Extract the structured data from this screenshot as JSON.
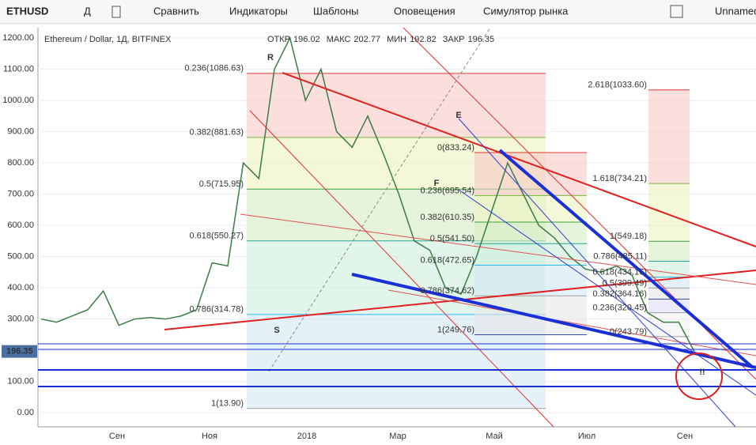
{
  "toolbar": {
    "symbol": "ETHUSD",
    "interval": "Д",
    "items": [
      "Сравнить",
      "Индикаторы",
      "Шаблоны",
      "Оповещения",
      "Симулятор рынка"
    ],
    "layout_name": "Unnamed"
  },
  "chart_data": {
    "type": "line",
    "title": "Ethereum / Dollar, 1Д, BITFINEX",
    "ohlc": [
      {
        "name": "ОТКР",
        "value": 196.02
      },
      {
        "name": "МАКС",
        "value": 202.77
      },
      {
        "name": "МИН",
        "value": 192.82
      },
      {
        "name": "ЗАКР",
        "value": 196.35
      }
    ],
    "last_price": {
      "value": 196.35,
      "label": "196.35"
    },
    "color": "#3a7d44",
    "values": [
      300,
      290,
      310,
      330,
      390,
      280,
      300,
      305,
      300,
      310,
      330,
      480,
      470,
      800,
      750,
      1100,
      1200,
      1000,
      1100,
      900,
      850,
      950,
      830,
      700,
      550,
      520,
      400,
      380,
      500,
      650,
      800,
      700,
      600,
      560,
      500,
      460,
      450,
      470,
      440,
      320,
      290,
      290,
      196
    ],
    "ylim": [
      -45,
      1233
    ],
    "yticks": [
      {
        "value": 0,
        "label": "0.00"
      },
      {
        "value": 100,
        "label": "100.00"
      },
      {
        "value": 200,
        "label": "200.00"
      },
      {
        "value": 300,
        "label": "300.00"
      },
      {
        "value": 400,
        "label": "400.00"
      },
      {
        "value": 500,
        "label": "500.00"
      },
      {
        "value": 600,
        "label": "600.00"
      },
      {
        "value": 700,
        "label": "700.00"
      },
      {
        "value": 800,
        "label": "800.00"
      },
      {
        "value": 900,
        "label": "900.00"
      },
      {
        "value": 1000,
        "label": "1000.00"
      },
      {
        "value": 1100,
        "label": "1100.00"
      },
      {
        "value": 1200,
        "label": "1200.00"
      }
    ],
    "x_labels": [
      "Сен",
      "Ноя",
      "2018",
      "Мар",
      "Май",
      "Июл",
      "Сен"
    ],
    "fib_groups": [
      [
        {
          "label": "0.236(1086.63)",
          "value": 1086.63
        },
        {
          "label": "0.382(881.63)",
          "value": 881.63
        },
        {
          "label": "0.5(715.95)",
          "value": 715.95
        },
        {
          "label": "0.618(550.27)",
          "value": 550.27
        },
        {
          "label": "0.786(314.78)",
          "value": 314.78
        },
        {
          "label": "1(13.90)",
          "value": 13.9
        }
      ],
      [
        {
          "label": "0(833.24)",
          "value": 833.24
        },
        {
          "label": "0.236(695.54)",
          "value": 695.54
        },
        {
          "label": "0.382(610.35)",
          "value": 610.35
        },
        {
          "label": "0.5(541.50)",
          "value": 541.5
        },
        {
          "label": "0.618(472.65)",
          "value": 472.65
        },
        {
          "label": "0.786(374.62)",
          "value": 374.62
        },
        {
          "label": "1(249.76)",
          "value": 249.76
        }
      ],
      [
        {
          "label": "2.618(1033.60)",
          "value": 1033.6
        },
        {
          "label": "1.618(734.21)",
          "value": 734.21
        },
        {
          "label": "1(549.18)",
          "value": 549.18
        },
        {
          "label": "0.786(485.11)",
          "value": 485.11
        },
        {
          "label": "0.618(434.16)",
          "value": 434.16
        },
        {
          "label": "0.5(399.49)",
          "value": 399.49
        },
        {
          "label": "0.382(364.16)",
          "value": 364.16
        },
        {
          "label": "0.236(320.45)",
          "value": 320.45
        },
        {
          "label": "0(243.79)",
          "value": 243.79
        }
      ]
    ],
    "annotations": [
      "R",
      "S",
      "E",
      "F",
      "!!"
    ]
  }
}
